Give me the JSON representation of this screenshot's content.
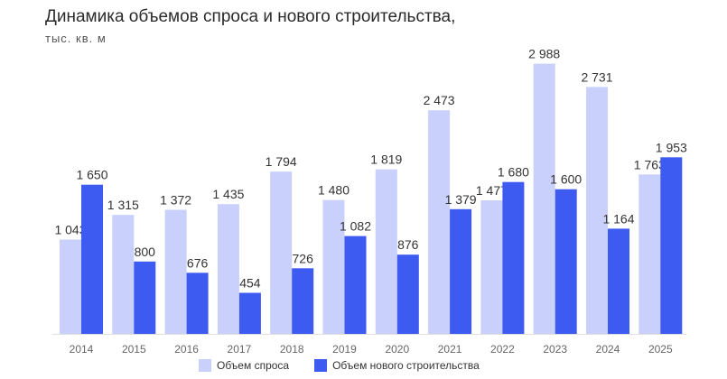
{
  "header": {
    "title": "Динамика объемов спроса и нового строительства,",
    "subtitle": "тыс. кв. м"
  },
  "chart_data": {
    "type": "bar",
    "title": "Динамика объемов спроса и нового строительства,",
    "subtitle": "тыс. кв. м",
    "xlabel": "",
    "ylabel": "",
    "categories": [
      "2014",
      "2015",
      "2016",
      "2017",
      "2018",
      "2019",
      "2020",
      "2021",
      "2022",
      "2023",
      "2024",
      "2025"
    ],
    "series": [
      {
        "name": "Объем спроса",
        "color": "#c9d0fb",
        "values": [
          1043,
          1315,
          1372,
          1435,
          1794,
          1480,
          1819,
          2473,
          1477,
          2988,
          2731,
          1763
        ],
        "labels": [
          "1 043",
          "1 315",
          "1 372",
          "1 435",
          "1 794",
          "1 480",
          "1 819",
          "2 473",
          "1 477",
          "2 988",
          "2 731",
          "1 763"
        ]
      },
      {
        "name": "Объем нового строительства",
        "color": "#3d5af1",
        "values": [
          1650,
          800,
          676,
          454,
          726,
          1082,
          876,
          1379,
          1680,
          1600,
          1164,
          1953
        ],
        "labels": [
          "1 650",
          "800",
          "676",
          "454",
          "726",
          "1 082",
          "876",
          "1 379",
          "1 680",
          "1 600",
          "1 164",
          "1 953"
        ]
      }
    ],
    "ylim": [
      0,
      3000
    ],
    "grid": false,
    "legend": "bottom"
  }
}
